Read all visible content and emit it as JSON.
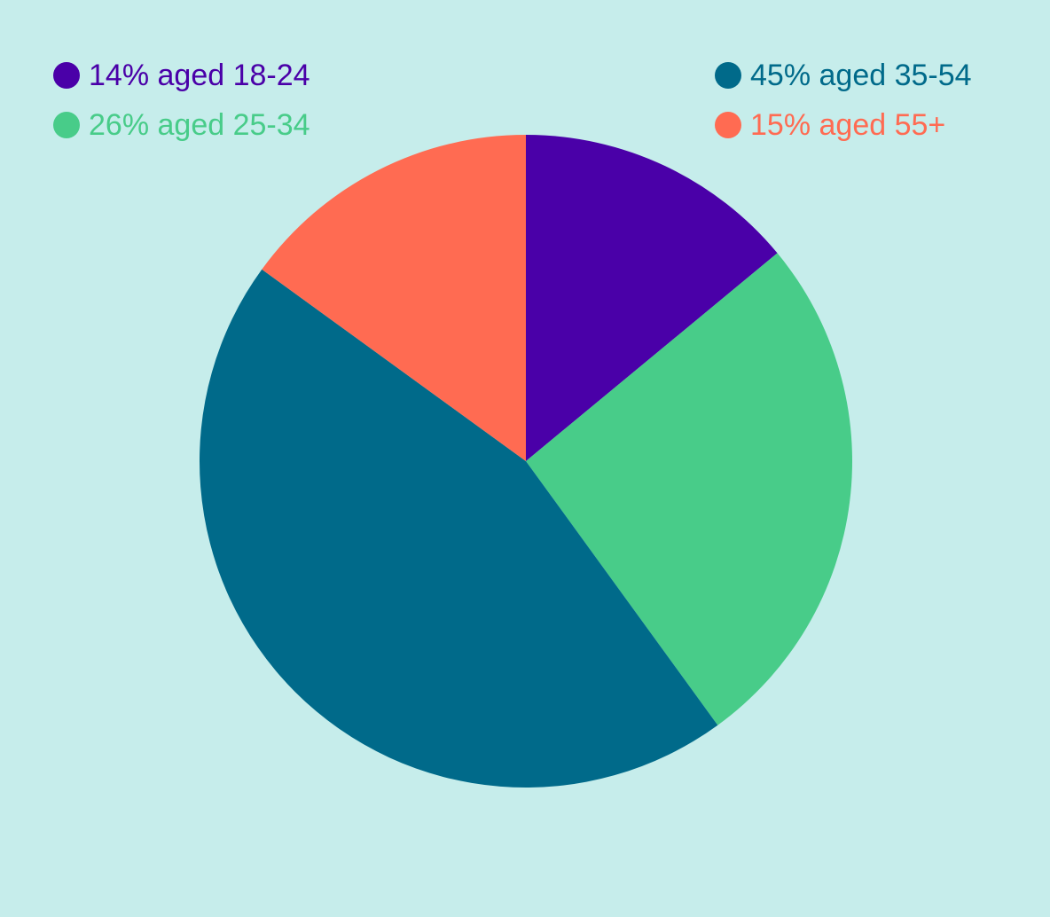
{
  "chart_data": {
    "type": "pie",
    "title": "",
    "slices": [
      {
        "label": "14% aged 18-24",
        "category": "aged 18-24",
        "value": 14,
        "color": "#4a00a8"
      },
      {
        "label": "26% aged 25-34",
        "category": "aged 25-34",
        "value": 26,
        "color": "#48cc89"
      },
      {
        "label": "45% aged 35-54",
        "category": "aged 35-54",
        "value": 45,
        "color": "#006a8a"
      },
      {
        "label": "15% aged 55+",
        "category": "aged 55+",
        "value": 15,
        "color": "#ff6b52"
      }
    ],
    "start_angle": "12 o'clock",
    "direction": "clockwise",
    "legend_position": "top"
  },
  "colors": {
    "background": "#c6edeb"
  }
}
